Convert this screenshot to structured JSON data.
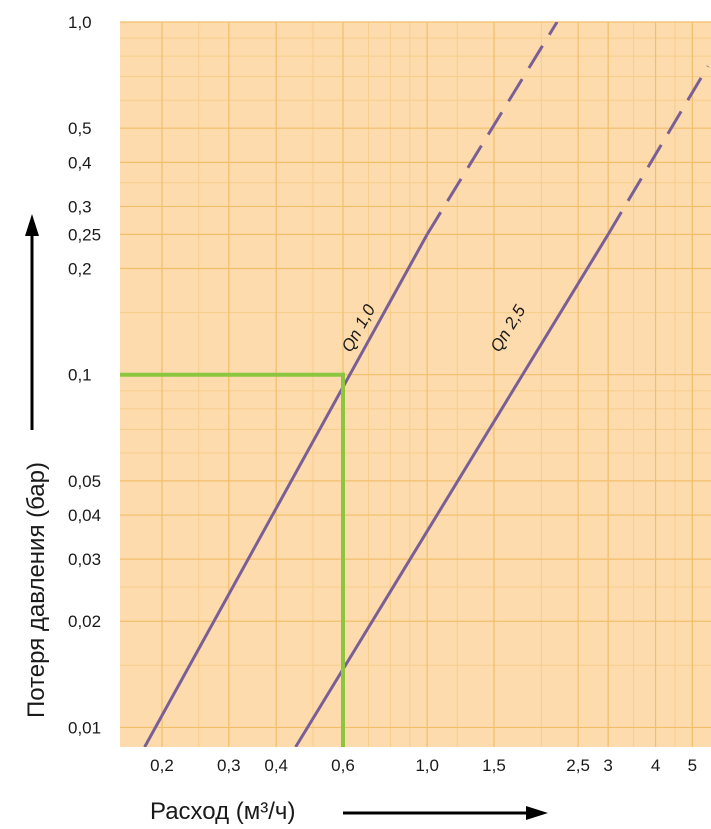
{
  "chart_data": {
    "type": "line",
    "xlabel": "Расход (м³/ч)",
    "ylabel": "Потеря давления (бар)",
    "x_scale": "log",
    "y_scale": "log",
    "xlim": [
      0.155,
      5.6
    ],
    "ylim": [
      0.0088,
      1.0
    ],
    "grid": true,
    "x_ticks": [
      {
        "value": 0.2,
        "label": "0,2"
      },
      {
        "value": 0.3,
        "label": "0,3"
      },
      {
        "value": 0.4,
        "label": "0,4"
      },
      {
        "value": 0.6,
        "label": "0,6"
      },
      {
        "value": 1.0,
        "label": "1,0"
      },
      {
        "value": 1.5,
        "label": "1,5"
      },
      {
        "value": 2.5,
        "label": "2,5"
      },
      {
        "value": 3,
        "label": "3"
      },
      {
        "value": 4,
        "label": "4"
      },
      {
        "value": 5,
        "label": "5"
      }
    ],
    "y_ticks": [
      {
        "value": 1.0,
        "label": "1,0"
      },
      {
        "value": 0.5,
        "label": "0,5"
      },
      {
        "value": 0.4,
        "label": "0,4"
      },
      {
        "value": 0.3,
        "label": "0,3"
      },
      {
        "value": 0.25,
        "label": "0,25"
      },
      {
        "value": 0.2,
        "label": "0,2"
      },
      {
        "value": 0.1,
        "label": "0,1"
      },
      {
        "value": 0.05,
        "label": "0,05"
      },
      {
        "value": 0.04,
        "label": "0,04"
      },
      {
        "value": 0.03,
        "label": "0,03"
      },
      {
        "value": 0.02,
        "label": "0,02"
      },
      {
        "value": 0.01,
        "label": "0,01"
      }
    ],
    "series": [
      {
        "name": "Qn 1,0",
        "solid": {
          "x": [
            0.18,
            1.0
          ],
          "y": [
            0.0088,
            0.25
          ]
        },
        "dashed": {
          "x": [
            1.0,
            2.2
          ],
          "y": [
            0.25,
            1.0
          ]
        }
      },
      {
        "name": "Qn 2,5",
        "solid": {
          "x": [
            0.45,
            3.0
          ],
          "y": [
            0.0088,
            0.25
          ]
        },
        "dashed": {
          "x": [
            3.0,
            5.5
          ],
          "y": [
            0.25,
            0.75
          ]
        }
      }
    ],
    "annotation": {
      "x": 0.6,
      "y": 0.1
    },
    "colors": {
      "background": "#fddbad",
      "major_grid": "#f2be6a",
      "minor_grid": "#f7cd8a",
      "curve": "#7a5f97",
      "annotation": "#8cc63f",
      "text": "#1a1a1a"
    }
  }
}
